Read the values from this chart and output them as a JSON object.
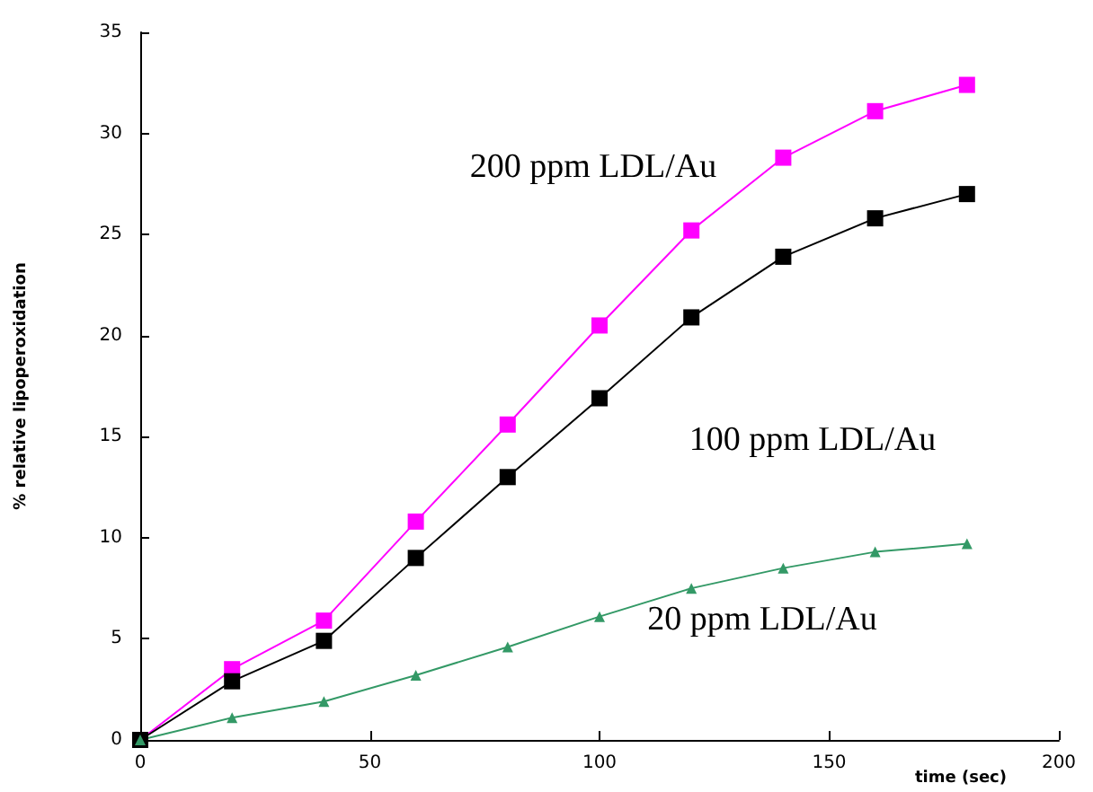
{
  "chart_data": {
    "type": "line",
    "xlabel": "time (sec)",
    "ylabel": "% relative lipoperoxidation",
    "x": [
      0,
      20,
      40,
      60,
      80,
      100,
      120,
      140,
      160,
      180
    ],
    "series": [
      {
        "color": "#ff00ff",
        "marker": "square",
        "values": [
          0,
          3.5,
          5.9,
          10.8,
          15.6,
          20.5,
          25.2,
          28.8,
          31.1,
          32.4
        ]
      },
      {
        "color": "#000000",
        "marker": "square",
        "values": [
          0,
          2.9,
          4.9,
          9.0,
          13.0,
          16.9,
          20.9,
          23.9,
          25.8,
          27.0
        ]
      },
      {
        "color": "#339966",
        "marker": "triangle",
        "values": [
          0,
          1.1,
          1.9,
          3.2,
          4.6,
          6.1,
          7.5,
          8.5,
          9.3,
          9.7
        ]
      }
    ],
    "xlim": [
      0,
      200
    ],
    "xticks": [
      0,
      50,
      100,
      150,
      200
    ],
    "ylim": [
      0,
      35
    ],
    "yticks": [
      0,
      5,
      10,
      15,
      20,
      25,
      30,
      35
    ],
    "grid": false,
    "annotations": [
      "200 ppm LDL/Au",
      "100 ppm LDL/Au",
      "20 ppm LDL/Au"
    ]
  }
}
